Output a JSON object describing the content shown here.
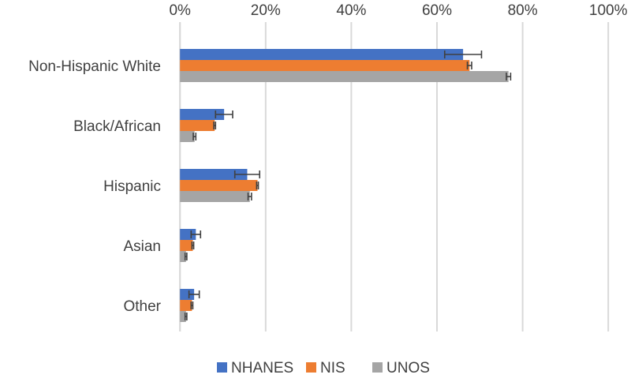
{
  "chart_data": {
    "type": "bar",
    "orientation": "horizontal",
    "title": "",
    "xlabel": "",
    "ylabel": "",
    "xlim": [
      0,
      100
    ],
    "x_ticks": [
      "0%",
      "20%",
      "40%",
      "60%",
      "80%",
      "100%"
    ],
    "x_tick_values": [
      0,
      20,
      40,
      60,
      80,
      100
    ],
    "grid": true,
    "legend_position": "bottom",
    "categories": [
      "Non-Hispanic White",
      "Black/African",
      "Hispanic",
      "Asian",
      "Other"
    ],
    "series": [
      {
        "name": "NHANES",
        "color": "#4472C4",
        "values": [
          66.1,
          10.3,
          15.7,
          3.7,
          3.3
        ],
        "errors": [
          4.3,
          2.0,
          2.9,
          1.1,
          1.2
        ]
      },
      {
        "name": "NIS",
        "color": "#ED7D31",
        "values": [
          67.6,
          8.1,
          18.1,
          3.0,
          2.8
        ],
        "errors": [
          0.5,
          0.2,
          0.2,
          0.2,
          0.2
        ]
      },
      {
        "name": "UNOS",
        "color": "#A5A5A5",
        "values": [
          76.7,
          3.4,
          16.3,
          1.4,
          1.4
        ],
        "errors": [
          0.5,
          0.3,
          0.4,
          0.2,
          0.2
        ]
      }
    ]
  }
}
